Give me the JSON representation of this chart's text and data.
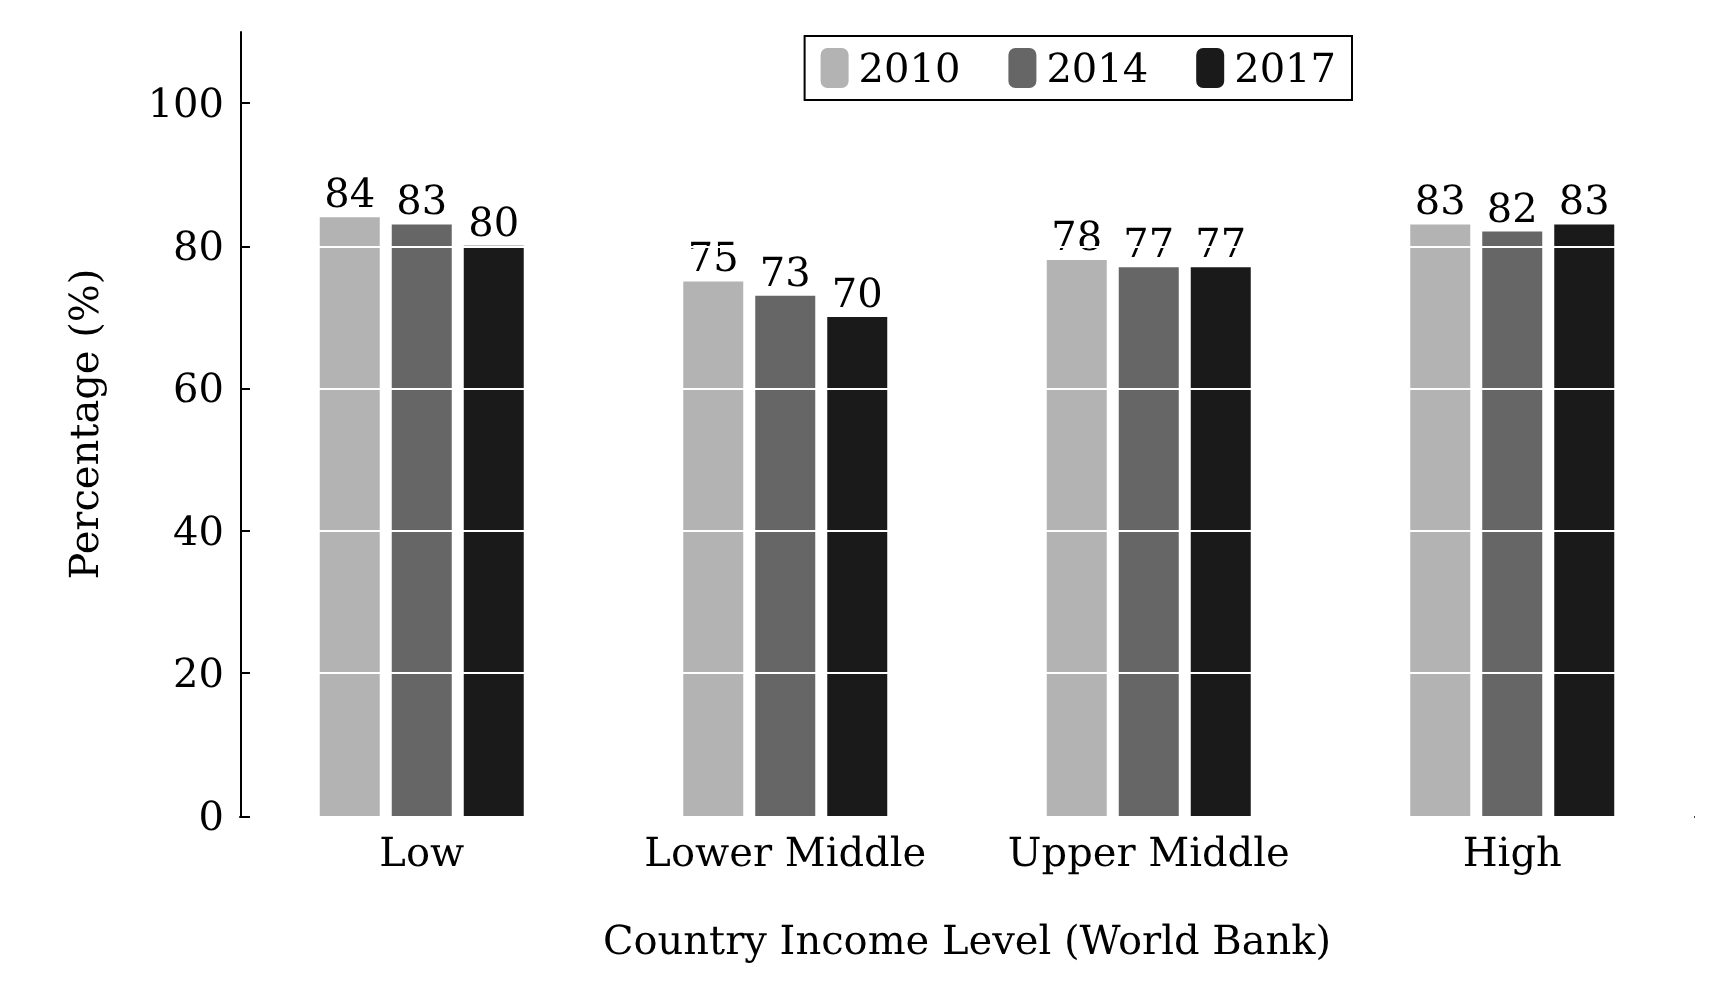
{
  "chart_data": {
    "type": "bar",
    "xlabel": "Country Income Level (World Bank)",
    "ylabel": "Percentage (%)",
    "categories": [
      "Low",
      "Lower Middle",
      "Upper Middle",
      "High"
    ],
    "series": [
      {
        "name": "2010",
        "color": "#b3b3b3",
        "values": [
          84,
          75,
          78,
          83
        ]
      },
      {
        "name": "2014",
        "color": "#666666",
        "values": [
          83,
          73,
          77,
          82
        ]
      },
      {
        "name": "2017",
        "color": "#1a1a1a",
        "values": [
          80,
          70,
          77,
          83
        ]
      }
    ],
    "ylim": [
      0,
      110
    ],
    "yticks": [
      0,
      20,
      40,
      60,
      80,
      100
    ],
    "grid": "y",
    "legend": "top right",
    "data_labels": true
  }
}
